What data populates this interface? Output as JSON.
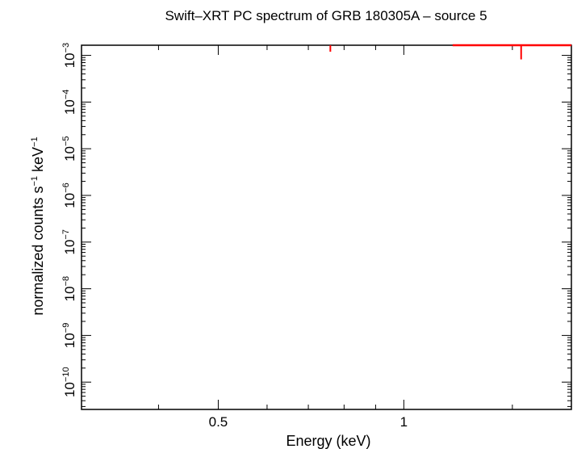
{
  "chart_data": {
    "type": "scatter",
    "title": "Swift–XRT PC spectrum of GRB 180305A – source 5",
    "xlabel": "Energy (keV)",
    "ylabel_main": "normalized counts s",
    "ylabel_sup1": "−1",
    "ylabel_mid": " keV",
    "ylabel_sup2": "−1",
    "x_scale": "log",
    "y_scale": "log",
    "xlim": [
      0.3,
      1.87
    ],
    "ylim": [
      2.6e-11,
      0.00165
    ],
    "grid": false,
    "x_major_ticks": [
      {
        "value": 0.5,
        "label": "0.5"
      },
      {
        "value": 1,
        "label": "1"
      }
    ],
    "x_minor_ticks": [
      0.3,
      0.4,
      0.6,
      0.7,
      0.8,
      0.9,
      1.5
    ],
    "y_major_ticks": [
      {
        "value": 1e-10,
        "base": "10",
        "exp": "−10"
      },
      {
        "value": 1e-09,
        "base": "10",
        "exp": "−9"
      },
      {
        "value": 1e-08,
        "base": "10",
        "exp": "−8"
      },
      {
        "value": 1e-07,
        "base": "10",
        "exp": "−7"
      },
      {
        "value": 1e-06,
        "base": "10",
        "exp": "−6"
      },
      {
        "value": 1e-05,
        "base": "10",
        "exp": "−5"
      },
      {
        "value": 0.0001,
        "base": "10",
        "exp": "−4"
      },
      {
        "value": 0.001,
        "base": "10",
        "exp": "−3"
      }
    ],
    "series": [
      {
        "color": "#ff0000",
        "points": [
          {
            "x": 0.76,
            "y_low": 0.0012
          },
          {
            "x": 1.55,
            "xerr": [
              1.2,
              1.87
            ],
            "y_low": 0.00082
          }
        ]
      }
    ]
  }
}
